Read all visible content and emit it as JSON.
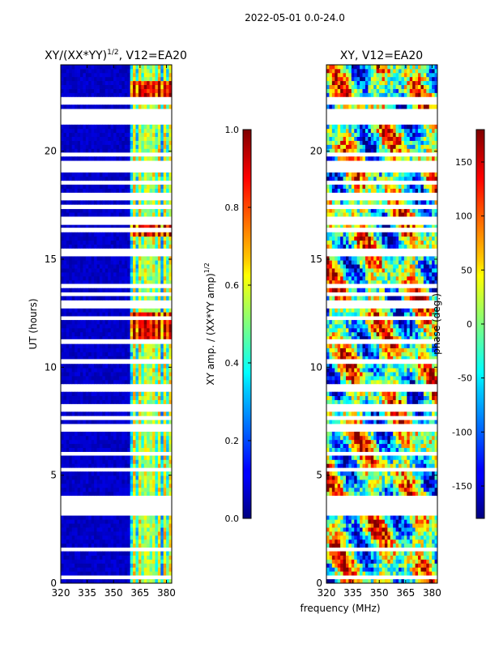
{
  "suptitle": "2022-05-01 0.0-24.0",
  "common_xlabel": "frequency (MHz)",
  "chart_data": [
    {
      "type": "heatmap",
      "title_main": "XY/(XX*YY)",
      "title_exp": "1/2",
      "title_tail": ", V12=EA20",
      "ylabel": "UT (hours)",
      "xlim": [
        320,
        383
      ],
      "ylim": [
        0,
        24
      ],
      "xticks": [
        320,
        335,
        350,
        365,
        380
      ],
      "yticks": [
        0,
        5,
        10,
        15,
        20
      ],
      "colorbar": {
        "label_main": "XY amp. / (XX*YY amp)",
        "label_exp": "1/2",
        "range": [
          0.0,
          1.0
        ],
        "ticks": [
          "0.0",
          "0.2",
          "0.4",
          "0.6",
          "0.8",
          "1.0"
        ]
      }
    },
    {
      "type": "heatmap",
      "title": "XY, V12=EA20",
      "xlim": [
        320,
        383
      ],
      "ylim": [
        0,
        24
      ],
      "xticks": [
        320,
        335,
        350,
        365,
        380
      ],
      "yticks": [
        0,
        5,
        10,
        15,
        20
      ],
      "colorbar": {
        "label": "phase (deg.)",
        "range": [
          -180,
          180
        ],
        "ticks": [
          -150,
          -100,
          -50,
          0,
          50,
          100,
          150
        ]
      }
    }
  ]
}
